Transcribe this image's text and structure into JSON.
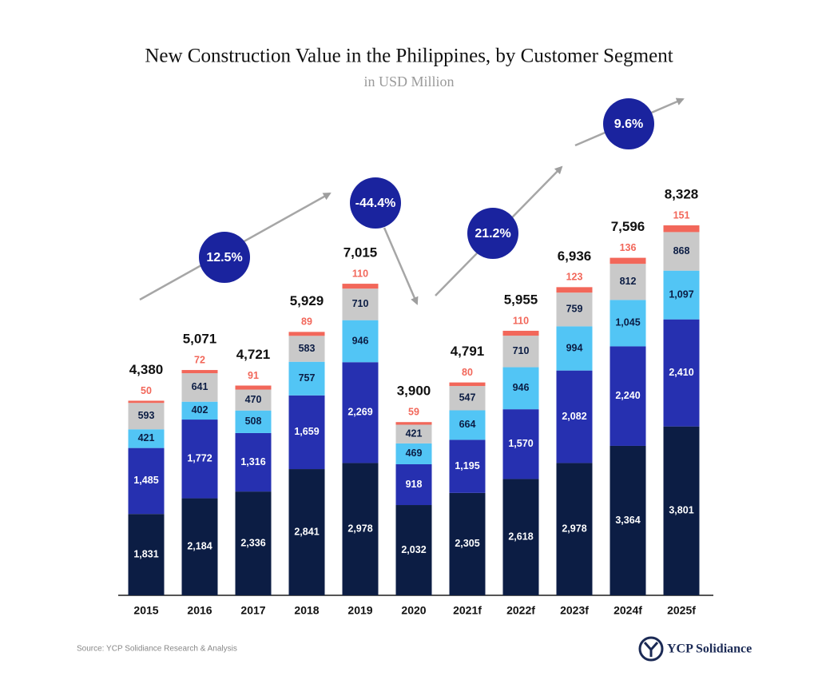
{
  "chart_data": {
    "type": "stacked-bar",
    "title": "New Construction Value in the Philippines, by Customer Segment",
    "subtitle": "in USD Million",
    "categories": [
      "2015",
      "2016",
      "2017",
      "2018",
      "2019",
      "2020",
      "2021f",
      "2022f",
      "2023f",
      "2024f",
      "2025f"
    ],
    "series": [
      {
        "color": "#0c1d44",
        "values": [
          1831,
          2184,
          2336,
          2841,
          2978,
          2032,
          2305,
          2618,
          2978,
          3364,
          3801
        ],
        "value_labels": [
          "1,831",
          "2,184",
          "2,336",
          "2,841",
          "2,978",
          "2,032",
          "2,305",
          "2,618",
          "2,978",
          "3,364",
          "3,801"
        ]
      },
      {
        "color": "#2630b0",
        "values": [
          1485,
          1772,
          1316,
          1659,
          2269,
          918,
          1195,
          1570,
          2082,
          2240,
          2410
        ],
        "value_labels": [
          "1,485",
          "1,772",
          "1,316",
          "1,659",
          "2,269",
          "918",
          "1,195",
          "1,570",
          "2,082",
          "2,240",
          "2,410"
        ]
      },
      {
        "color": "#52c5f5",
        "values": [
          421,
          402,
          508,
          757,
          946,
          469,
          664,
          946,
          994,
          1045,
          1097
        ],
        "value_labels": [
          "421",
          "402",
          "508",
          "757",
          "946",
          "469",
          "664",
          "946",
          "994",
          "1,045",
          "1,097"
        ]
      },
      {
        "color": "#c9c9c9",
        "values": [
          593,
          641,
          470,
          583,
          710,
          421,
          547,
          710,
          759,
          812,
          868
        ],
        "value_labels": [
          "593",
          "641",
          "470",
          "583",
          "710",
          "421",
          "547",
          "710",
          "759",
          "812",
          "868"
        ]
      },
      {
        "color": "#f2675a",
        "values": [
          50,
          72,
          91,
          89,
          110,
          59,
          80,
          110,
          123,
          136,
          151
        ]
      }
    ],
    "totals": [
      4380,
      5071,
      4721,
      5929,
      7015,
      3900,
      4791,
      5955,
      6936,
      7596,
      8328
    ],
    "total_labels": [
      "4,380",
      "5,071",
      "4,721",
      "5,929",
      "7,015",
      "3,900",
      "4,791",
      "5,955",
      "6,936",
      "7,596",
      "8,328"
    ],
    "annotations": [
      "12.5%",
      "-44.4%",
      "21.2%",
      "9.6%"
    ],
    "source": "Source: YCP Solidiance Research & Analysis",
    "logo": "YCP Solidiance"
  }
}
